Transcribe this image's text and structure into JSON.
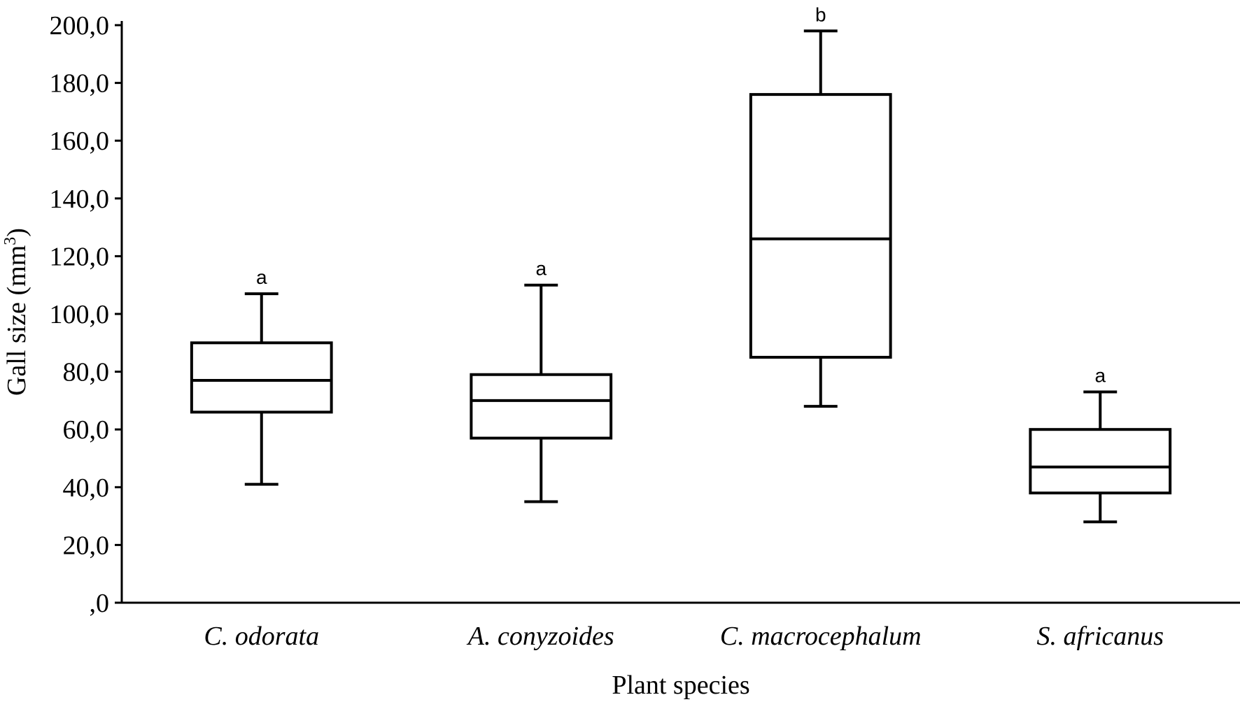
{
  "chart_data": {
    "type": "boxplot",
    "xlabel": "Plant species",
    "ylabel": "Gall size (mm",
    "ylabel_superscript": "3",
    "ylabel_suffix": ")",
    "ylim": [
      0,
      200
    ],
    "yticks": [
      0,
      20,
      40,
      60,
      80,
      100,
      120,
      140,
      160,
      180,
      200
    ],
    "ytick_labels": [
      ",0",
      "20,0",
      "40,0",
      "60,0",
      "80,0",
      "100,0",
      "120,0",
      "140,0",
      "160,0",
      "180,0",
      "200,0"
    ],
    "grid": false,
    "categories": [
      "C. odorata",
      "A. conyzoides",
      "C. macrocephalum",
      "S. africanus"
    ],
    "boxes": [
      {
        "category": "C. odorata",
        "min": 41,
        "q1": 66,
        "median": 77,
        "q3": 90,
        "max": 107,
        "letter": "a"
      },
      {
        "category": "A. conyzoides",
        "min": 35,
        "q1": 57,
        "median": 70,
        "q3": 79,
        "max": 110,
        "letter": "a"
      },
      {
        "category": "C. macrocephalum",
        "min": 68,
        "q1": 85,
        "median": 126,
        "q3": 176,
        "max": 198,
        "letter": "b"
      },
      {
        "category": "S. africanus",
        "min": 28,
        "q1": 38,
        "median": 47,
        "q3": 60,
        "max": 73,
        "letter": "a"
      }
    ]
  }
}
